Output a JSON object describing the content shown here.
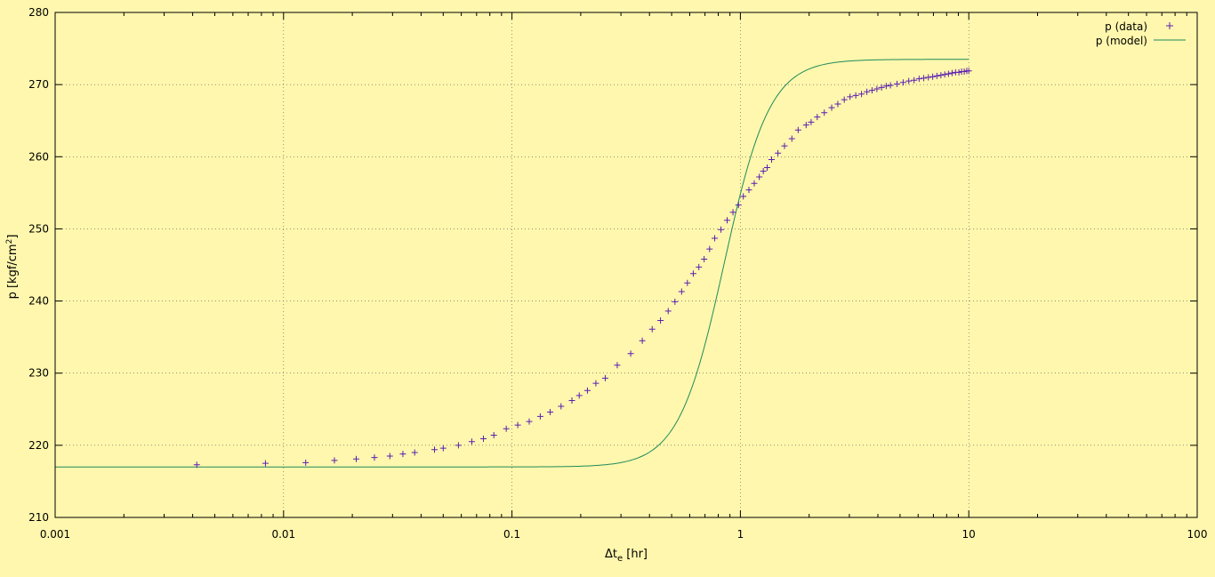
{
  "chart_data": {
    "type": "scatter",
    "title": "",
    "xlabel": {
      "main": "Δt",
      "sub": "e",
      "unit": " [hr]"
    },
    "ylabel": {
      "main": "p [kgf/cm",
      "sup": "2",
      "end": "]"
    },
    "x_scale": "log",
    "xlim": [
      0.001,
      100
    ],
    "ylim": [
      210,
      280
    ],
    "x_ticks": [
      0.001,
      0.01,
      0.1,
      1,
      10,
      100
    ],
    "x_tick_labels": [
      "0.001",
      "0.01",
      "0.1",
      "1",
      "10",
      "100"
    ],
    "y_ticks": [
      210,
      220,
      230,
      240,
      250,
      260,
      270,
      280
    ],
    "y_tick_labels": [
      "210",
      "220",
      "230",
      "240",
      "250",
      "260",
      "270",
      "280"
    ],
    "grid": true,
    "legend_position": "top-right",
    "colors": {
      "background": "#fff7ad",
      "data": "#5b1fb0",
      "model": "#1f8a5a",
      "grid": "#555555"
    },
    "series": [
      {
        "name": "p (data)",
        "kind": "points",
        "marker": "plus",
        "x": [
          0.00417,
          0.00833,
          0.0125,
          0.0167,
          0.0208,
          0.025,
          0.0292,
          0.0333,
          0.0375,
          0.0458,
          0.05,
          0.0583,
          0.0667,
          0.075,
          0.0833,
          0.0944,
          0.106,
          0.119,
          0.133,
          0.147,
          0.164,
          0.183,
          0.197,
          0.214,
          0.233,
          0.256,
          0.289,
          0.331,
          0.372,
          0.411,
          0.447,
          0.483,
          0.517,
          0.553,
          0.586,
          0.622,
          0.658,
          0.694,
          0.733,
          0.772,
          0.822,
          0.875,
          0.928,
          0.981,
          1.03,
          1.09,
          1.15,
          1.21,
          1.26,
          1.31,
          1.37,
          1.46,
          1.56,
          1.68,
          1.79,
          1.94,
          2.04,
          2.17,
          2.33,
          2.51,
          2.67,
          2.85,
          3.02,
          3.2,
          3.39,
          3.58,
          3.77,
          3.96,
          4.15,
          4.35,
          4.54,
          4.85,
          5.16,
          5.46,
          5.76,
          6.06,
          6.35,
          6.65,
          6.95,
          7.25,
          7.55,
          7.85,
          8.15,
          8.45,
          8.75,
          9.05,
          9.3,
          9.55,
          9.8,
          10.0
        ],
        "y": [
          217.3,
          217.5,
          217.6,
          217.9,
          218.1,
          218.3,
          218.5,
          218.8,
          219.0,
          219.4,
          219.6,
          220.0,
          220.5,
          220.9,
          221.4,
          222.3,
          222.8,
          223.3,
          224.0,
          224.6,
          225.4,
          226.2,
          226.9,
          227.6,
          228.6,
          229.3,
          231.1,
          232.7,
          234.5,
          236.1,
          237.3,
          238.6,
          239.9,
          241.3,
          242.5,
          243.8,
          244.7,
          245.8,
          247.2,
          248.7,
          249.9,
          251.2,
          252.3,
          253.3,
          254.5,
          255.4,
          256.3,
          257.2,
          258.0,
          258.5,
          259.6,
          260.5,
          261.5,
          262.5,
          263.7,
          264.4,
          264.8,
          265.5,
          266.1,
          266.8,
          267.3,
          267.9,
          268.3,
          268.5,
          268.7,
          269.0,
          269.2,
          269.4,
          269.6,
          269.8,
          269.9,
          270.1,
          270.3,
          270.5,
          270.6,
          270.8,
          270.9,
          271.0,
          271.1,
          271.2,
          271.3,
          271.4,
          271.5,
          271.6,
          271.7,
          271.7,
          271.8,
          271.8,
          271.9,
          271.9
        ]
      },
      {
        "name": "p (model)",
        "kind": "line",
        "model": {
          "p0": 217.0,
          "p_inf": 273.5,
          "x_mid": 0.85,
          "k": 4.35
        }
      }
    ]
  }
}
